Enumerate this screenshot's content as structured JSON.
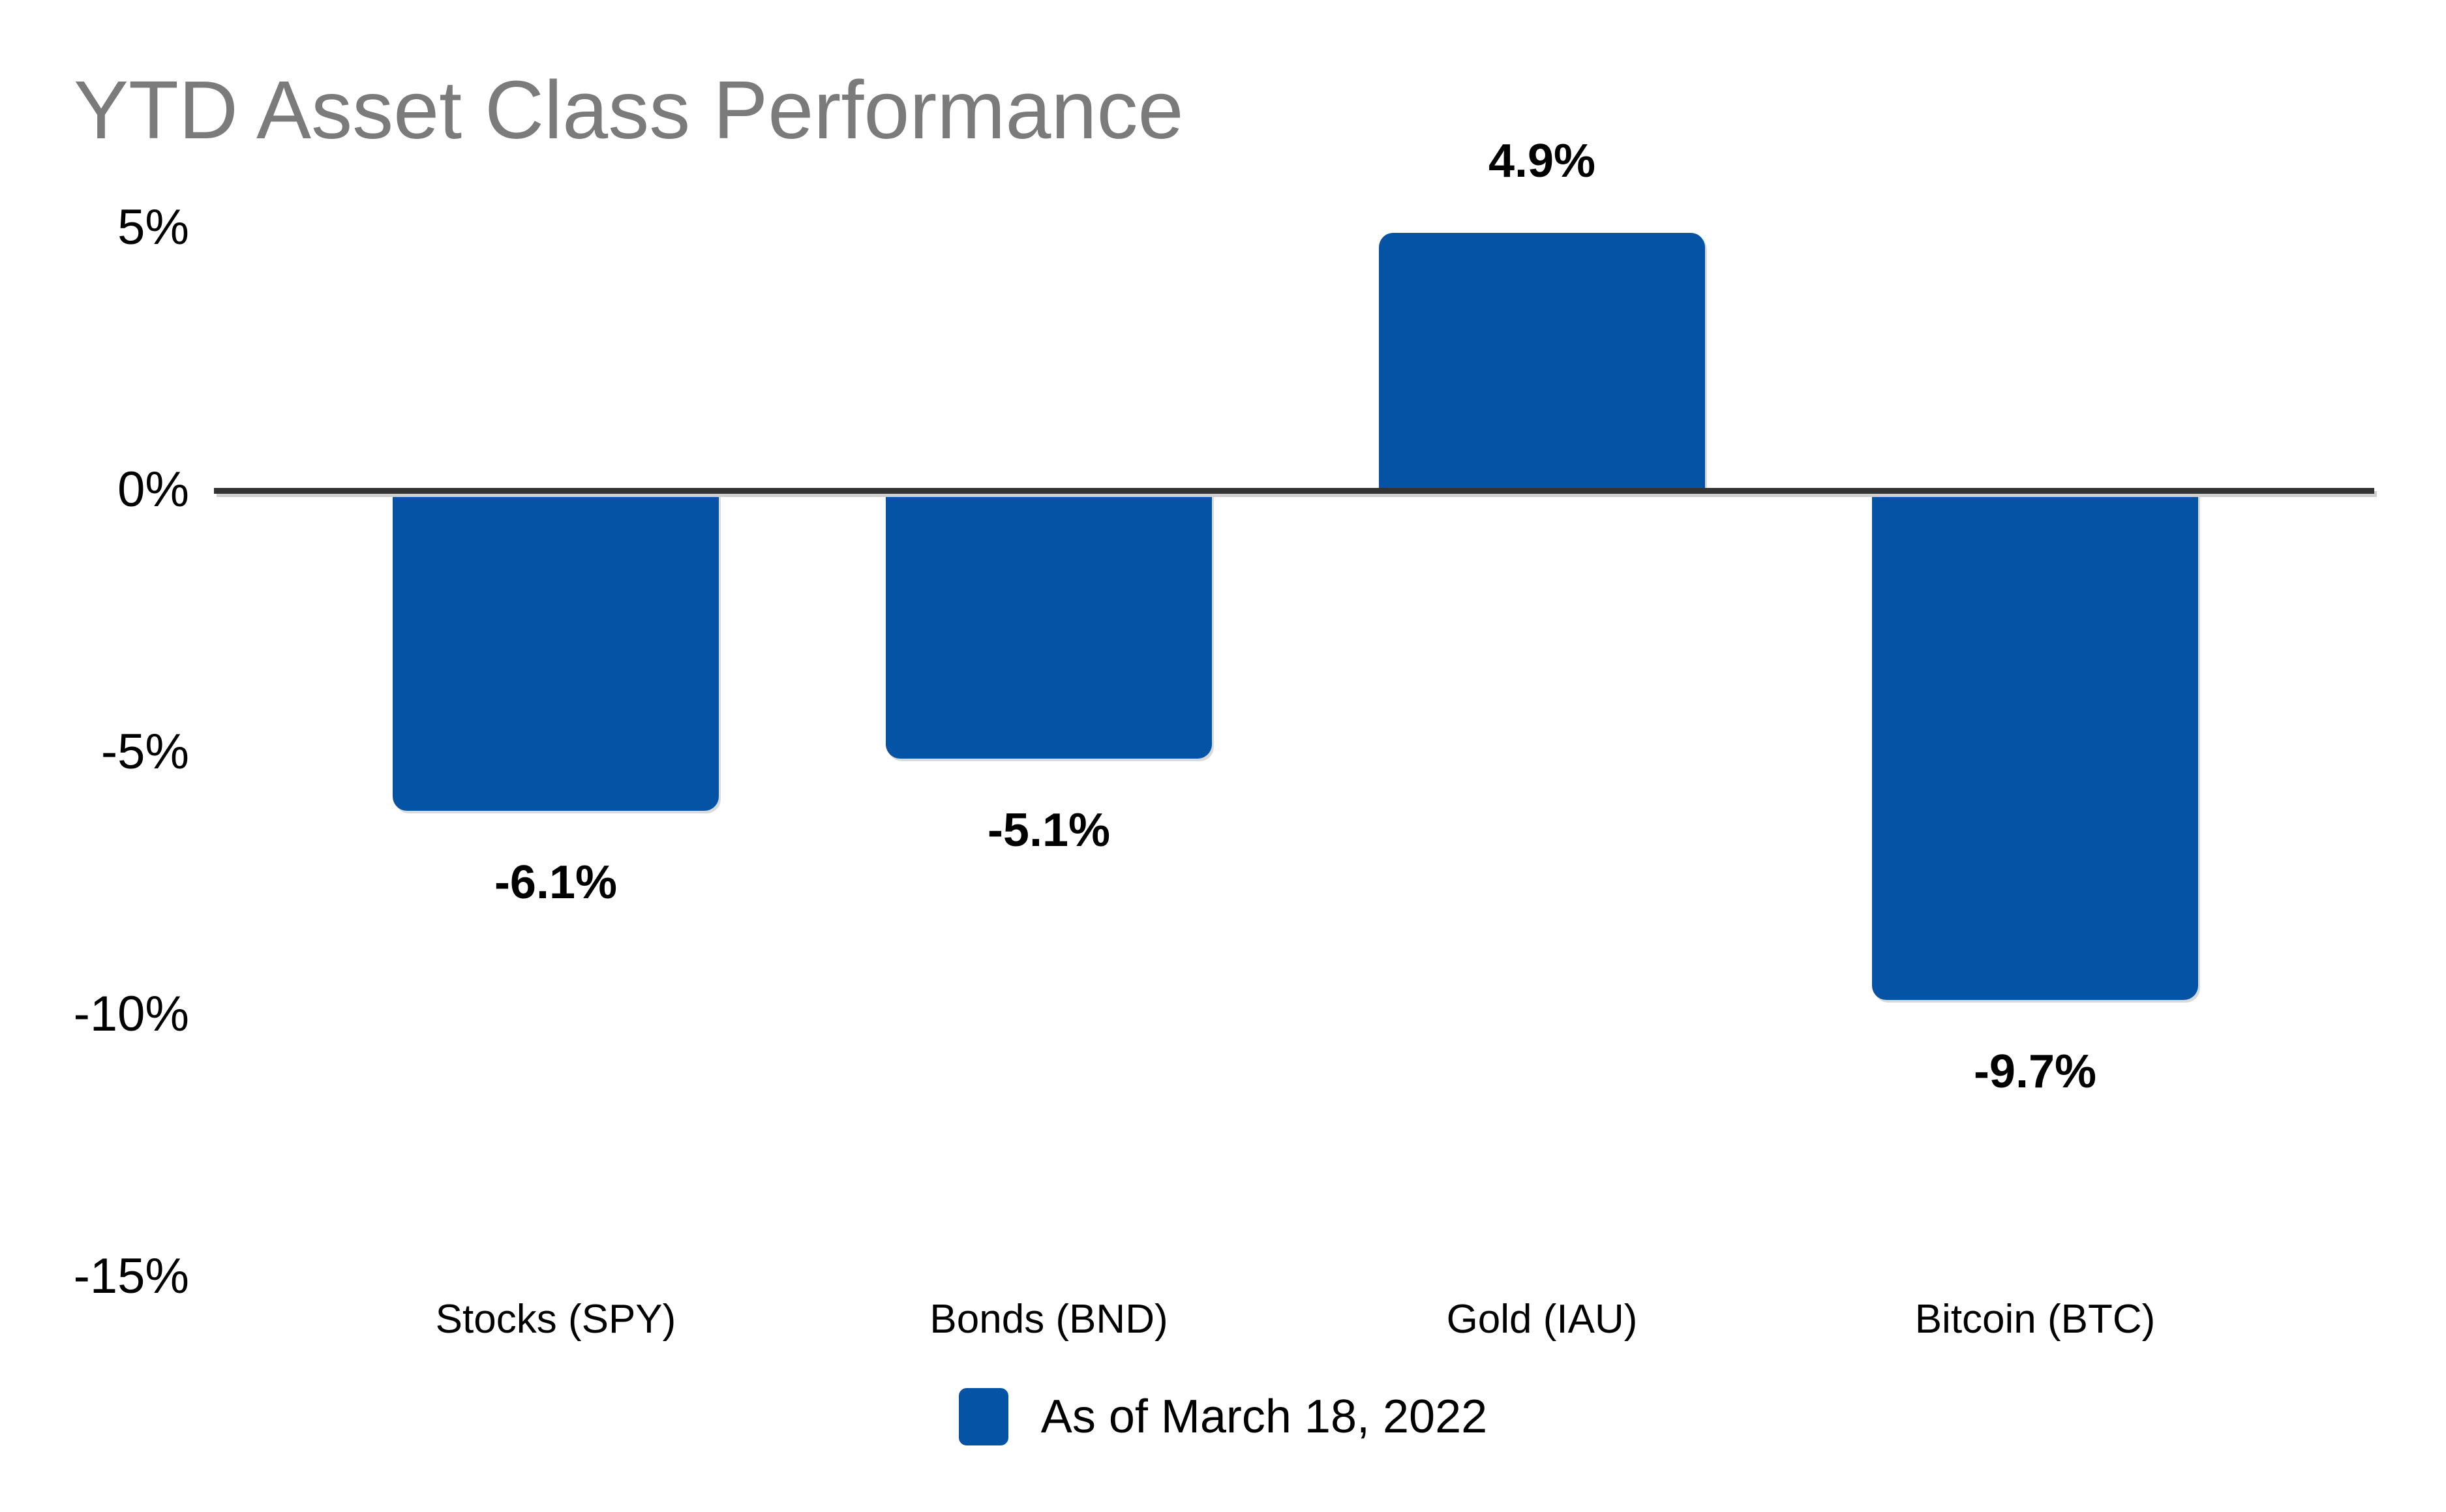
{
  "title": "YTD Asset Class Performance",
  "colors": {
    "bar": "#0553A5",
    "title_text": "#7b7b7b",
    "axis_line": "#333333",
    "label_text": "#000000",
    "background": "#ffffff"
  },
  "legend": {
    "label": "As of March 18, 2022",
    "swatch_color": "#0553A5",
    "position": "bottom-center"
  },
  "chart_data": {
    "type": "bar",
    "title": "YTD Asset Class Performance",
    "categories": [
      "Stocks (SPY)",
      "Bonds (BND)",
      "Gold (IAU)",
      "Bitcoin (BTC)"
    ],
    "series": [
      {
        "name": "As of March 18, 2022",
        "values": [
          -6.1,
          -5.1,
          4.9,
          -9.7
        ]
      }
    ],
    "value_labels": [
      "-6.1%",
      "-5.1%",
      "4.9%",
      "-9.7%"
    ],
    "y_ticks": [
      {
        "label": "5%",
        "value": 5
      },
      {
        "label": "0%",
        "value": 0
      },
      {
        "label": "-5%",
        "value": -5
      },
      {
        "label": "-10%",
        "value": -10
      },
      {
        "label": "-15%",
        "value": -15
      }
    ],
    "ylim": [
      -15,
      5
    ],
    "xlabel": "",
    "ylabel": "",
    "grid": false,
    "zero_baseline": true,
    "legend_position": "bottom-center",
    "bar_color": "#0553A5"
  }
}
